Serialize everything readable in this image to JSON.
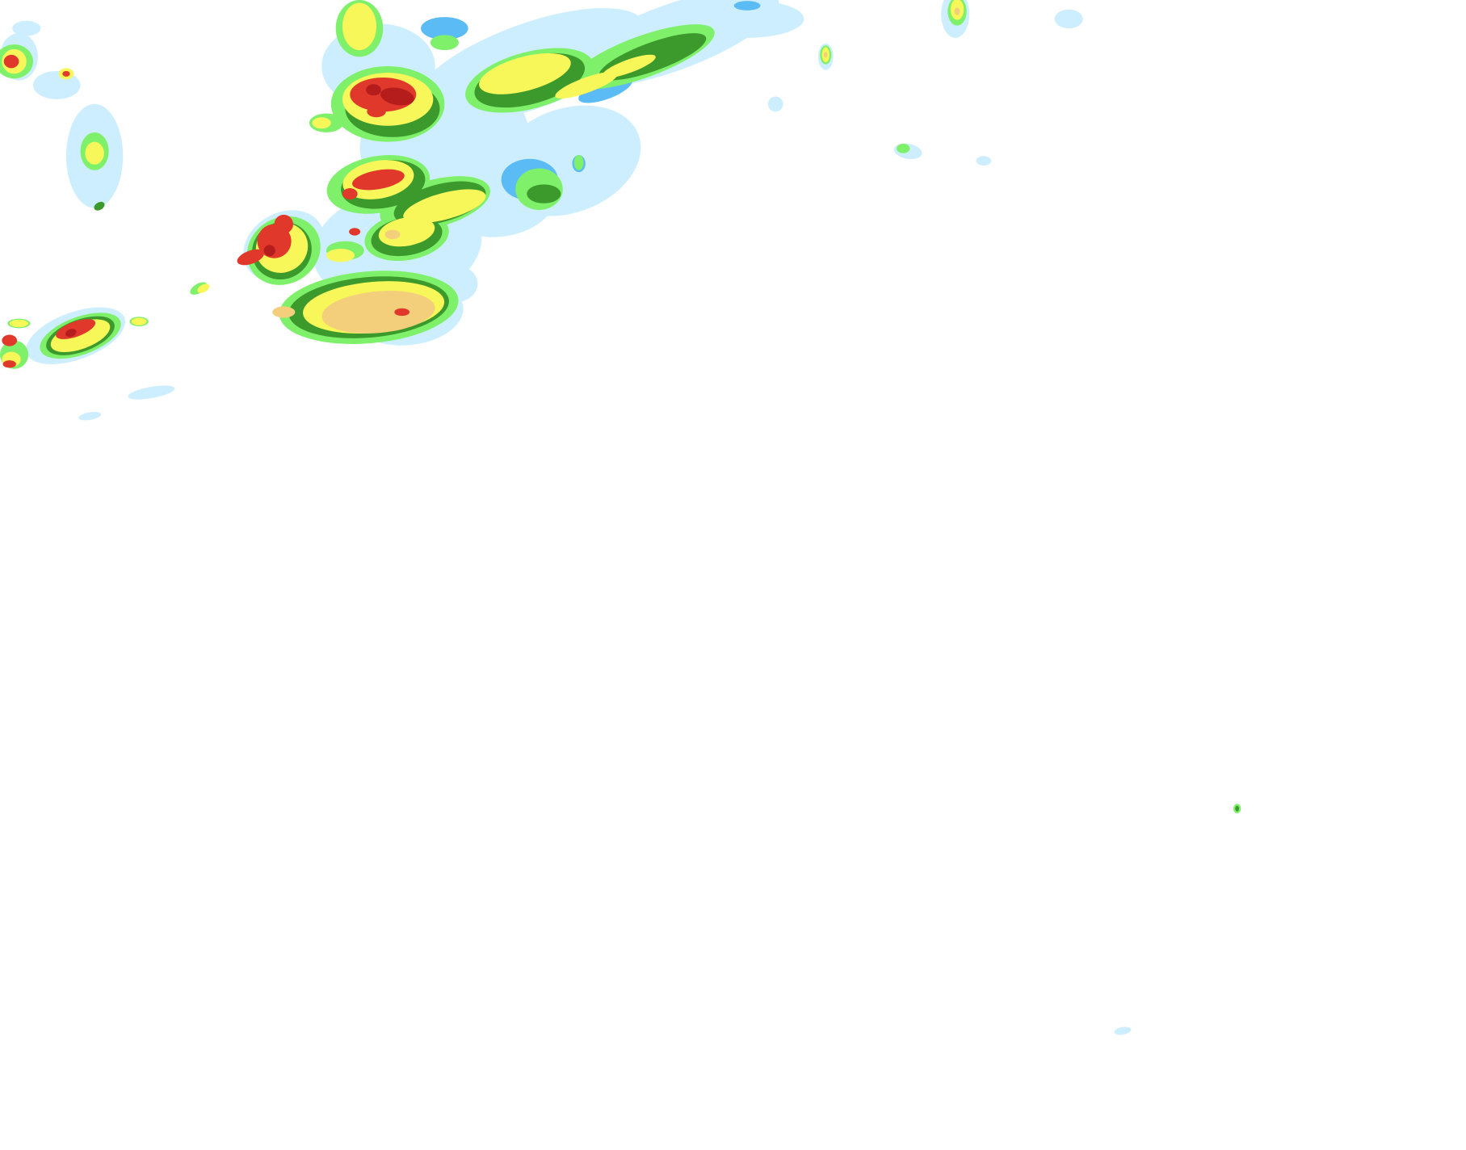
{
  "map": {
    "background": "#ffffff",
    "palette": {
      "light_blue": "#cdeeff",
      "blue": "#5bbcf5",
      "light_green": "#7ef06a",
      "dark_green": "#3c9a2c",
      "yellow": "#f7f75a",
      "tan": "#f3cf7c",
      "red": "#e0392b",
      "dark_red": "#b51d1d"
    }
  }
}
